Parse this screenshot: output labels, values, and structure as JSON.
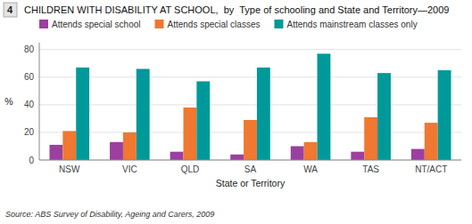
{
  "chart_data": {
    "type": "bar",
    "title": "CHILDREN WITH DISABILITY AT SCHOOL,  by  Type of schooling and State and Territory—2009",
    "annotations": [
      "4",
      "Source: ABS Survey of Disability, Ageing and Carers, 2009"
    ],
    "xlabel": "State or Territory",
    "ylabel": "%",
    "categories": [
      "NSW",
      "VIC",
      "QLD",
      "SA",
      "WA",
      "TAS",
      "NT/ACT"
    ],
    "series": [
      {
        "name": "Attends special school",
        "color": "#9b3fa0",
        "values": [
          11,
          13,
          6,
          4,
          10,
          6,
          8
        ]
      },
      {
        "name": "Attends special classes",
        "color": "#f07830",
        "values": [
          21,
          20,
          38,
          29,
          13,
          31,
          27
        ]
      },
      {
        "name": "Attends mainstream classes only",
        "color": "#009999",
        "values": [
          67,
          66,
          57,
          67,
          77,
          63,
          65
        ]
      }
    ],
    "ylim": [
      0,
      85
    ],
    "yticks": [
      0,
      20,
      40,
      60,
      80
    ],
    "grid": true
  }
}
